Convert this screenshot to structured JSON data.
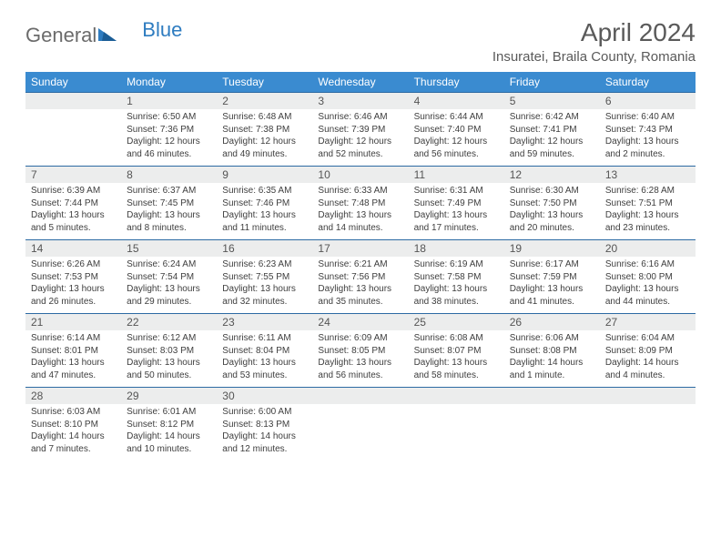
{
  "brand": {
    "part1": "General",
    "part2": "Blue"
  },
  "title": "April 2024",
  "location": "Insuratei, Braila County, Romania",
  "colors": {
    "header_bg": "#3a8bd0",
    "header_text": "#ffffff",
    "daynum_bg": "#eceded",
    "row_border": "#2c6aa3",
    "text": "#3e3e3e",
    "title_text": "#5a5a5a",
    "logo_gray": "#6b6b6b",
    "logo_blue": "#2e7cc0"
  },
  "typography": {
    "title_fontsize": 28,
    "location_fontsize": 15,
    "header_fontsize": 12,
    "daynum_fontsize": 12,
    "cell_fontsize": 10
  },
  "weekdays": [
    "Sunday",
    "Monday",
    "Tuesday",
    "Wednesday",
    "Thursday",
    "Friday",
    "Saturday"
  ],
  "weeks": [
    {
      "nums": [
        "",
        "1",
        "2",
        "3",
        "4",
        "5",
        "6"
      ],
      "cells": [
        {
          "sunrise": "",
          "sunset": "",
          "daylight": ""
        },
        {
          "sunrise": "Sunrise: 6:50 AM",
          "sunset": "Sunset: 7:36 PM",
          "daylight": "Daylight: 12 hours and 46 minutes."
        },
        {
          "sunrise": "Sunrise: 6:48 AM",
          "sunset": "Sunset: 7:38 PM",
          "daylight": "Daylight: 12 hours and 49 minutes."
        },
        {
          "sunrise": "Sunrise: 6:46 AM",
          "sunset": "Sunset: 7:39 PM",
          "daylight": "Daylight: 12 hours and 52 minutes."
        },
        {
          "sunrise": "Sunrise: 6:44 AM",
          "sunset": "Sunset: 7:40 PM",
          "daylight": "Daylight: 12 hours and 56 minutes."
        },
        {
          "sunrise": "Sunrise: 6:42 AM",
          "sunset": "Sunset: 7:41 PM",
          "daylight": "Daylight: 12 hours and 59 minutes."
        },
        {
          "sunrise": "Sunrise: 6:40 AM",
          "sunset": "Sunset: 7:43 PM",
          "daylight": "Daylight: 13 hours and 2 minutes."
        }
      ]
    },
    {
      "nums": [
        "7",
        "8",
        "9",
        "10",
        "11",
        "12",
        "13"
      ],
      "cells": [
        {
          "sunrise": "Sunrise: 6:39 AM",
          "sunset": "Sunset: 7:44 PM",
          "daylight": "Daylight: 13 hours and 5 minutes."
        },
        {
          "sunrise": "Sunrise: 6:37 AM",
          "sunset": "Sunset: 7:45 PM",
          "daylight": "Daylight: 13 hours and 8 minutes."
        },
        {
          "sunrise": "Sunrise: 6:35 AM",
          "sunset": "Sunset: 7:46 PM",
          "daylight": "Daylight: 13 hours and 11 minutes."
        },
        {
          "sunrise": "Sunrise: 6:33 AM",
          "sunset": "Sunset: 7:48 PM",
          "daylight": "Daylight: 13 hours and 14 minutes."
        },
        {
          "sunrise": "Sunrise: 6:31 AM",
          "sunset": "Sunset: 7:49 PM",
          "daylight": "Daylight: 13 hours and 17 minutes."
        },
        {
          "sunrise": "Sunrise: 6:30 AM",
          "sunset": "Sunset: 7:50 PM",
          "daylight": "Daylight: 13 hours and 20 minutes."
        },
        {
          "sunrise": "Sunrise: 6:28 AM",
          "sunset": "Sunset: 7:51 PM",
          "daylight": "Daylight: 13 hours and 23 minutes."
        }
      ]
    },
    {
      "nums": [
        "14",
        "15",
        "16",
        "17",
        "18",
        "19",
        "20"
      ],
      "cells": [
        {
          "sunrise": "Sunrise: 6:26 AM",
          "sunset": "Sunset: 7:53 PM",
          "daylight": "Daylight: 13 hours and 26 minutes."
        },
        {
          "sunrise": "Sunrise: 6:24 AM",
          "sunset": "Sunset: 7:54 PM",
          "daylight": "Daylight: 13 hours and 29 minutes."
        },
        {
          "sunrise": "Sunrise: 6:23 AM",
          "sunset": "Sunset: 7:55 PM",
          "daylight": "Daylight: 13 hours and 32 minutes."
        },
        {
          "sunrise": "Sunrise: 6:21 AM",
          "sunset": "Sunset: 7:56 PM",
          "daylight": "Daylight: 13 hours and 35 minutes."
        },
        {
          "sunrise": "Sunrise: 6:19 AM",
          "sunset": "Sunset: 7:58 PM",
          "daylight": "Daylight: 13 hours and 38 minutes."
        },
        {
          "sunrise": "Sunrise: 6:17 AM",
          "sunset": "Sunset: 7:59 PM",
          "daylight": "Daylight: 13 hours and 41 minutes."
        },
        {
          "sunrise": "Sunrise: 6:16 AM",
          "sunset": "Sunset: 8:00 PM",
          "daylight": "Daylight: 13 hours and 44 minutes."
        }
      ]
    },
    {
      "nums": [
        "21",
        "22",
        "23",
        "24",
        "25",
        "26",
        "27"
      ],
      "cells": [
        {
          "sunrise": "Sunrise: 6:14 AM",
          "sunset": "Sunset: 8:01 PM",
          "daylight": "Daylight: 13 hours and 47 minutes."
        },
        {
          "sunrise": "Sunrise: 6:12 AM",
          "sunset": "Sunset: 8:03 PM",
          "daylight": "Daylight: 13 hours and 50 minutes."
        },
        {
          "sunrise": "Sunrise: 6:11 AM",
          "sunset": "Sunset: 8:04 PM",
          "daylight": "Daylight: 13 hours and 53 minutes."
        },
        {
          "sunrise": "Sunrise: 6:09 AM",
          "sunset": "Sunset: 8:05 PM",
          "daylight": "Daylight: 13 hours and 56 minutes."
        },
        {
          "sunrise": "Sunrise: 6:08 AM",
          "sunset": "Sunset: 8:07 PM",
          "daylight": "Daylight: 13 hours and 58 minutes."
        },
        {
          "sunrise": "Sunrise: 6:06 AM",
          "sunset": "Sunset: 8:08 PM",
          "daylight": "Daylight: 14 hours and 1 minute."
        },
        {
          "sunrise": "Sunrise: 6:04 AM",
          "sunset": "Sunset: 8:09 PM",
          "daylight": "Daylight: 14 hours and 4 minutes."
        }
      ]
    },
    {
      "nums": [
        "28",
        "29",
        "30",
        "",
        "",
        "",
        ""
      ],
      "cells": [
        {
          "sunrise": "Sunrise: 6:03 AM",
          "sunset": "Sunset: 8:10 PM",
          "daylight": "Daylight: 14 hours and 7 minutes."
        },
        {
          "sunrise": "Sunrise: 6:01 AM",
          "sunset": "Sunset: 8:12 PM",
          "daylight": "Daylight: 14 hours and 10 minutes."
        },
        {
          "sunrise": "Sunrise: 6:00 AM",
          "sunset": "Sunset: 8:13 PM",
          "daylight": "Daylight: 14 hours and 12 minutes."
        },
        {
          "sunrise": "",
          "sunset": "",
          "daylight": ""
        },
        {
          "sunrise": "",
          "sunset": "",
          "daylight": ""
        },
        {
          "sunrise": "",
          "sunset": "",
          "daylight": ""
        },
        {
          "sunrise": "",
          "sunset": "",
          "daylight": ""
        }
      ]
    }
  ]
}
